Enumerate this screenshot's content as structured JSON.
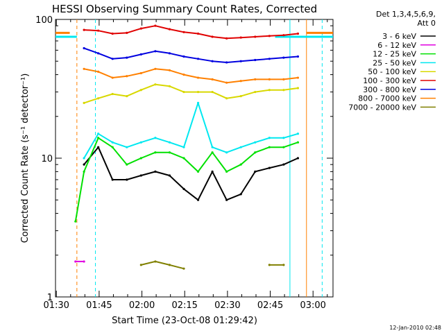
{
  "chart_data": {
    "type": "line",
    "title": "HESSI Observing Summary Count Rates, Corrected",
    "xlabel": "Start Time (23-Oct-08 01:29:42)",
    "ylabel": "Corrected Count Rate (s⁻¹ detector⁻¹)",
    "yscale": "log",
    "ylim": [
      1,
      100
    ],
    "xlim": [
      "01:29:42",
      "03:07:00"
    ],
    "x_ticks": [
      "01:30",
      "01:45",
      "02:00",
      "02:15",
      "02:30",
      "02:45",
      "03:00"
    ],
    "y_ticks": [
      "1",
      "10",
      "100"
    ],
    "legend_title": [
      "Det 1,3,4,5,6,9,",
      "Att 0"
    ],
    "legend_position": "right",
    "footer": "12-Jan-2010 02:48",
    "x_minutes": [
      7,
      10,
      15,
      20,
      25,
      30,
      35,
      40,
      45,
      50,
      55,
      60,
      65,
      70,
      75,
      80,
      85
    ],
    "series": [
      {
        "name": "3 - 6 keV",
        "color": "#000000",
        "values": [
          null,
          9,
          12,
          7,
          7,
          7.5,
          8,
          7.5,
          6,
          5,
          8,
          5,
          5.5,
          8,
          8.5,
          9,
          10
        ]
      },
      {
        "name": "6 - 12 keV",
        "color": "#e000e0",
        "values": [
          1.8,
          1.8,
          null,
          null,
          null,
          null,
          null,
          null,
          null,
          null,
          null,
          null,
          null,
          null,
          null,
          null,
          null
        ]
      },
      {
        "name": "12 - 25 keV",
        "color": "#00e000",
        "values": [
          3.5,
          8,
          14,
          12,
          9,
          10,
          11,
          11,
          10,
          8,
          11,
          8,
          9,
          11,
          12,
          12,
          13
        ]
      },
      {
        "name": "25 - 50 keV",
        "color": "#00e8f0",
        "values": [
          null,
          10,
          15,
          13,
          12,
          13,
          14,
          13,
          12,
          25,
          12,
          11,
          12,
          13,
          14,
          14,
          15
        ]
      },
      {
        "name": "50 - 100 keV",
        "color": "#d8d800",
        "values": [
          null,
          25,
          27,
          29,
          28,
          31,
          34,
          33,
          30,
          30,
          30,
          27,
          28,
          30,
          31,
          31,
          32
        ]
      },
      {
        "name": "100 - 300 keV",
        "color": "#e00000",
        "values": [
          null,
          84,
          83,
          79,
          80,
          86,
          90,
          85,
          81,
          79,
          75,
          73,
          74,
          75,
          76,
          77,
          79
        ]
      },
      {
        "name": "300 - 800 keV",
        "color": "#0000e0",
        "values": [
          null,
          62,
          57,
          52,
          53,
          56,
          59,
          57,
          54,
          52,
          50,
          49,
          50,
          51,
          52,
          53,
          54
        ]
      },
      {
        "name": "800 - 7000 keV",
        "color": "#ff8000",
        "values": [
          null,
          44,
          42,
          38,
          39,
          41,
          44,
          43,
          40,
          38,
          37,
          35,
          36,
          37,
          37,
          37,
          38
        ]
      },
      {
        "name": "7000 - 20000 keV",
        "color": "#808000",
        "values": [
          null,
          null,
          null,
          null,
          null,
          1.7,
          1.8,
          1.7,
          1.6,
          null,
          null,
          null,
          null,
          null,
          1.7,
          1.7,
          null
        ]
      }
    ],
    "vertical_markers": [
      {
        "minutes": 7.5,
        "color": "#ff8000",
        "style": "dashed"
      },
      {
        "minutes": 14,
        "color": "#00e8f0",
        "style": "dashed"
      },
      {
        "minutes": 82.2,
        "color": "#00e8f0",
        "style": "solid"
      },
      {
        "minutes": 88,
        "color": "#ff8000",
        "style": "solid"
      },
      {
        "minutes": 93.5,
        "color": "#00e8f0",
        "style": "dashed"
      }
    ],
    "horizontal_markers": [
      {
        "value": 80,
        "color": "#ff8000",
        "ranges": [
          [
            0,
            5
          ],
          [
            88,
            97.3
          ]
        ]
      },
      {
        "value": 75,
        "color": "#00e8f0",
        "ranges": [
          [
            0,
            7.5
          ],
          [
            77,
            97.3
          ]
        ]
      }
    ]
  }
}
